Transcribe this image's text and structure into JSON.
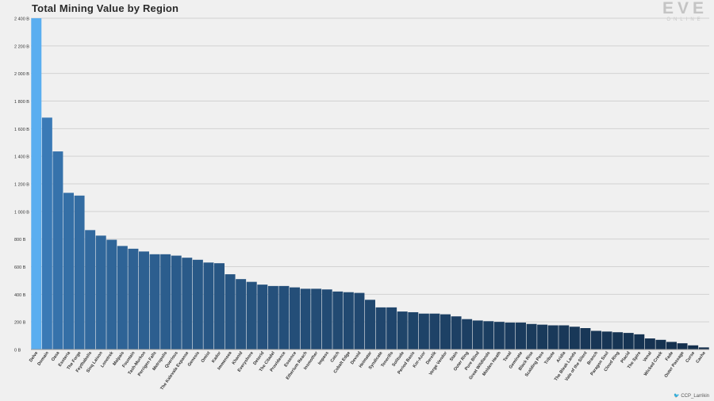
{
  "header": {
    "title": "Total Mining Value by Region",
    "logo_main": "EVE",
    "logo_sub": "ONLINE"
  },
  "footer": {
    "credit_icon": "twitter-bird-icon",
    "credit": "CCP_Larrikin"
  },
  "colors": {
    "top_bar": "#5aaef0",
    "gradient_start": "#3a7ab6",
    "gradient_end": "#142f4c",
    "grid": "#d2d2d2",
    "axis_text": "#333333"
  },
  "chart_data": {
    "type": "bar",
    "title": "Total Mining Value by Region",
    "xlabel": "",
    "ylabel": "",
    "ylim": [
      0,
      2400
    ],
    "yticks": [
      0,
      200,
      400,
      600,
      800,
      1000,
      1200,
      1400,
      1600,
      1800,
      2000,
      2200,
      2400
    ],
    "ytick_labels": [
      "0 B",
      "200 B",
      "400 B",
      "600 B",
      "800 B",
      "1 000 B",
      "1 200 B",
      "1 400 B",
      "1 600 B",
      "1 800 B",
      "2 000 B",
      "2 200 B",
      "2 400 B"
    ],
    "grid": true,
    "categories": [
      "Delve",
      "Domain",
      "Oasa",
      "Esoteria",
      "The Forge",
      "Feythabolis",
      "Sinq Laison",
      "Lonetrek",
      "Malpais",
      "Fountain",
      "Tash-Murkon",
      "Perrigen Falls",
      "Metropolis",
      "Querious",
      "The Kalevala Expanse",
      "Genesis",
      "Omist",
      "Kador",
      "Immensea",
      "Khanid",
      "Everyshore",
      "Detorid",
      "The Citadel",
      "Providence",
      "Essence",
      "Etherium Reach",
      "Insmother",
      "Impass",
      "Catch",
      "Cobalt Edge",
      "Devoid",
      "Heimatar",
      "Syndicate",
      "Tenerifis",
      "Solitude",
      "Period Basis",
      "Kor-Azor",
      "Derelik",
      "Verge Vendor",
      "Stain",
      "Outer Ring",
      "Pure Blind",
      "Great Wildlands",
      "Molden Heath",
      "Tenal",
      "Geminate",
      "Black Rise",
      "Scalding Pass",
      "Tribute",
      "Aridia",
      "The Bleak Lands",
      "Vale of the Silent",
      "Branch",
      "Paragon Soul",
      "Cloud Ring",
      "Placid",
      "The Spire",
      "Venal",
      "Wicked Creek",
      "Fade",
      "Outer Passage",
      "Curse",
      "Cache"
    ],
    "values": [
      2400,
      1680,
      1435,
      1135,
      1115,
      865,
      825,
      795,
      750,
      730,
      710,
      690,
      690,
      680,
      665,
      650,
      630,
      625,
      545,
      510,
      490,
      470,
      460,
      460,
      450,
      440,
      440,
      435,
      420,
      415,
      410,
      360,
      305,
      305,
      275,
      270,
      260,
      260,
      255,
      240,
      220,
      210,
      205,
      200,
      195,
      195,
      185,
      180,
      175,
      175,
      165,
      155,
      135,
      130,
      125,
      120,
      110,
      80,
      70,
      55,
      45,
      30,
      15
    ]
  }
}
